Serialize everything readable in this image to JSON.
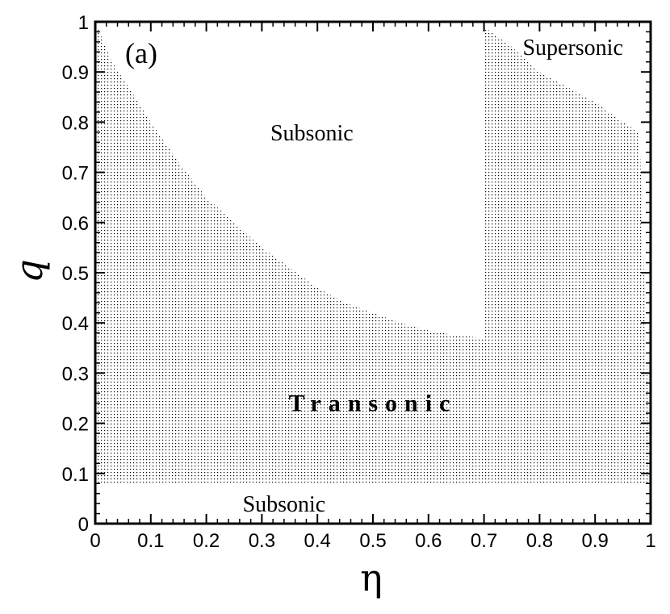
{
  "chart_data": {
    "type": "area",
    "xlabel": "η",
    "ylabel": "q",
    "xlim": [
      0,
      1
    ],
    "ylim": [
      0,
      1
    ],
    "xticks": [
      "0",
      "0.1",
      "0.2",
      "0.3",
      "0.4",
      "0.5",
      "0.6",
      "0.7",
      "0.8",
      "0.9",
      "1"
    ],
    "yticks": [
      "0",
      "0.1",
      "0.2",
      "0.3",
      "0.4",
      "0.5",
      "0.6",
      "0.7",
      "0.8",
      "0.9",
      "1"
    ],
    "panel_label": "(a)",
    "grid": false,
    "minor_ticks": true,
    "regions": [
      {
        "name": "Transonic",
        "fill": "dotted",
        "lower_boundary": {
          "x": [
            0.0,
            1.0
          ],
          "y": [
            0.08,
            0.08
          ]
        },
        "upper_boundary_left": {
          "x": [
            0.0,
            0.03,
            0.06,
            0.1,
            0.15,
            0.2,
            0.25,
            0.3,
            0.35,
            0.4,
            0.45,
            0.5,
            0.55,
            0.6,
            0.65,
            0.7
          ],
          "y": [
            1.0,
            0.92,
            0.87,
            0.8,
            0.72,
            0.65,
            0.6,
            0.55,
            0.51,
            0.47,
            0.44,
            0.42,
            0.4,
            0.385,
            0.375,
            0.37
          ]
        },
        "upper_boundary_right": {
          "x": [
            0.7,
            0.7,
            0.75,
            0.8,
            0.85,
            0.9,
            0.95,
            0.98
          ],
          "y": [
            0.37,
            0.99,
            0.95,
            0.9,
            0.87,
            0.84,
            0.8,
            0.78
          ]
        }
      }
    ],
    "annotations": [
      {
        "text": "Subsonic",
        "x": 0.39,
        "y": 0.78
      },
      {
        "text": "Supersonic",
        "x": 0.86,
        "y": 0.95
      },
      {
        "text": "Transonic",
        "x": 0.5,
        "y": 0.24,
        "bold": true
      },
      {
        "text": "Subsonic",
        "x": 0.34,
        "y": 0.04
      }
    ]
  }
}
